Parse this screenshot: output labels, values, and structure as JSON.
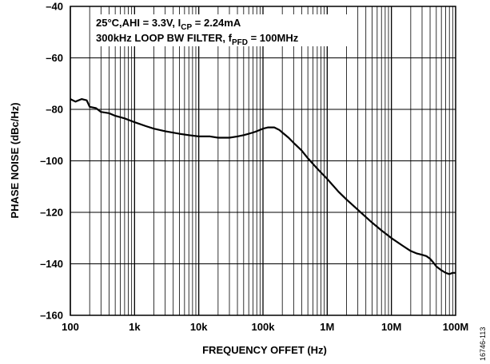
{
  "chart_data": {
    "type": "line",
    "xlabel": "FREQUENCY OFFET (Hz)",
    "ylabel": "PHASE NOISE (dBc/Hz)",
    "xscale": "log",
    "xlim": [
      100,
      100000000
    ],
    "ylim": [
      -160,
      -40
    ],
    "grid": true,
    "x_ticks": [
      {
        "value": 100,
        "label": "100"
      },
      {
        "value": 1000,
        "label": "1k"
      },
      {
        "value": 10000,
        "label": "10k"
      },
      {
        "value": 100000,
        "label": "100k"
      },
      {
        "value": 1000000,
        "label": "1M"
      },
      {
        "value": 10000000,
        "label": "10M"
      },
      {
        "value": 100000000,
        "label": "100M"
      }
    ],
    "y_ticks": [
      {
        "value": -40,
        "label": "–40"
      },
      {
        "value": -60,
        "label": "–60"
      },
      {
        "value": -80,
        "label": "–80"
      },
      {
        "value": -100,
        "label": "–100"
      },
      {
        "value": -120,
        "label": "–120"
      },
      {
        "value": -140,
        "label": "–140"
      },
      {
        "value": -160,
        "label": "–160"
      }
    ],
    "annotations": {
      "line1": {
        "prefix": "25°C,AHI = 3.3V, I",
        "sub": "CP",
        "suffix": " = 2.24mA"
      },
      "line2": {
        "prefix": "300kHz LOOP BW FILTER, f",
        "sub": "PFD",
        "suffix": " = 100MHz"
      }
    },
    "figure_id": "16746-113",
    "series": [
      {
        "color": "#000000",
        "x": [
          100,
          120,
          150,
          180,
          200,
          250,
          300,
          400,
          500,
          700,
          1000,
          1500,
          2000,
          3000,
          5000,
          7000,
          10000,
          15000,
          20000,
          30000,
          40000,
          50000,
          60000,
          70000,
          80000,
          100000,
          120000,
          150000,
          180000,
          200000,
          250000,
          300000,
          400000,
          500000,
          700000,
          1000000,
          1500000,
          2000000,
          3000000,
          5000000,
          7000000,
          10000000,
          15000000,
          20000000,
          25000000,
          30000000,
          35000000,
          40000000,
          45000000,
          50000000,
          60000000,
          70000000,
          80000000,
          90000000,
          100000000
        ],
        "y": [
          -76,
          -77,
          -76,
          -76.5,
          -79,
          -79.5,
          -81,
          -81.5,
          -82.5,
          -83.5,
          -85,
          -86.5,
          -87.5,
          -88.5,
          -89.5,
          -90,
          -90.5,
          -90.5,
          -91,
          -91,
          -90.5,
          -90,
          -89.5,
          -89,
          -88.5,
          -87.5,
          -87,
          -87,
          -88,
          -89,
          -91,
          -93,
          -96,
          -99,
          -103,
          -107,
          -112,
          -115,
          -119,
          -124,
          -127,
          -130,
          -133,
          -135,
          -136,
          -136.5,
          -137,
          -138,
          -139.5,
          -141,
          -142.5,
          -143.5,
          -144,
          -143.5,
          -143.5
        ]
      }
    ]
  }
}
